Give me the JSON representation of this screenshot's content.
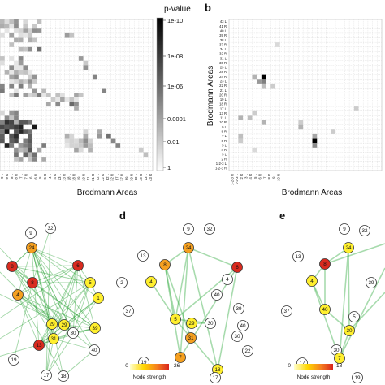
{
  "panels": {
    "b": "b",
    "d": "d",
    "e": "e"
  },
  "colorbar": {
    "title": "p-value",
    "ticks": [
      "1e-10",
      "1e-08",
      "1e-06",
      "0.0001",
      "0.01",
      "1"
    ]
  },
  "axes": {
    "a_xlabel": "Brodmann Areas",
    "b_xlabel": "Brodmann Areas",
    "b_ylabel": "Brodmann Areas"
  },
  "b_row_labels": [
    "43 L",
    "41 R",
    "40 L",
    "39 R",
    "38 L",
    "37 R",
    "34 L",
    "32 R",
    "31 L",
    "30 R",
    "29 L",
    "28 R",
    "24 R",
    "23 L",
    "22 R",
    "21 L",
    "20 R",
    "19 L",
    "18 R",
    "17 L",
    "13 R",
    "11 L",
    "10 R",
    "9 L",
    "8 R",
    "7 L",
    "6 R",
    "5 L",
    "4 R",
    "3 L",
    "2 R",
    "1-2-3 L",
    "1-2-3 R"
  ],
  "a_col_labels": [
    "9 L",
    "9 R",
    "8 L",
    "8 R",
    "7 L",
    "7 R",
    "6 L",
    "6 R",
    "5 L",
    "5 R",
    "4 L",
    "4 R",
    "13 L",
    "13 R",
    "18 L",
    "18 R",
    "19 L",
    "19 R",
    "21 L",
    "21 R",
    "22 L",
    "22 R",
    "32 L",
    "32 R",
    "37 L",
    "37 R",
    "39 L",
    "39 R",
    "40 L",
    "40 R",
    "43 L",
    "43 R"
  ],
  "b_col_labels": [
    "1-2-3 R",
    "1-2-3 L",
    "2 R",
    "3 L",
    "4 R",
    "5 L",
    "6 R",
    "7 L",
    "8 R",
    "9 L",
    "10 R"
  ],
  "graph_c_nodes": [
    "32",
    "9",
    "24",
    "6",
    "8",
    "8",
    "1",
    "5",
    "4",
    "29",
    "30",
    "31",
    "29",
    "39",
    "13",
    "40",
    "18",
    "17",
    "19"
  ],
  "graph_d_nodes": [
    "9",
    "32",
    "24",
    "6",
    "8",
    "4",
    "13",
    "4",
    "40",
    "39",
    "5",
    "29",
    "30",
    "31",
    "37",
    "2",
    "7",
    "19",
    "18",
    "17",
    "30",
    "40",
    "22"
  ],
  "graph_e_nodes": [
    "9",
    "32",
    "24",
    "8",
    "4",
    "13",
    "39",
    "40",
    "5",
    "30",
    "30",
    "37",
    "7",
    "19",
    "17"
  ],
  "legend": {
    "title": "Node strength",
    "d_min": "0",
    "d_max": "26",
    "e_min": "0",
    "e_max": "18"
  }
}
